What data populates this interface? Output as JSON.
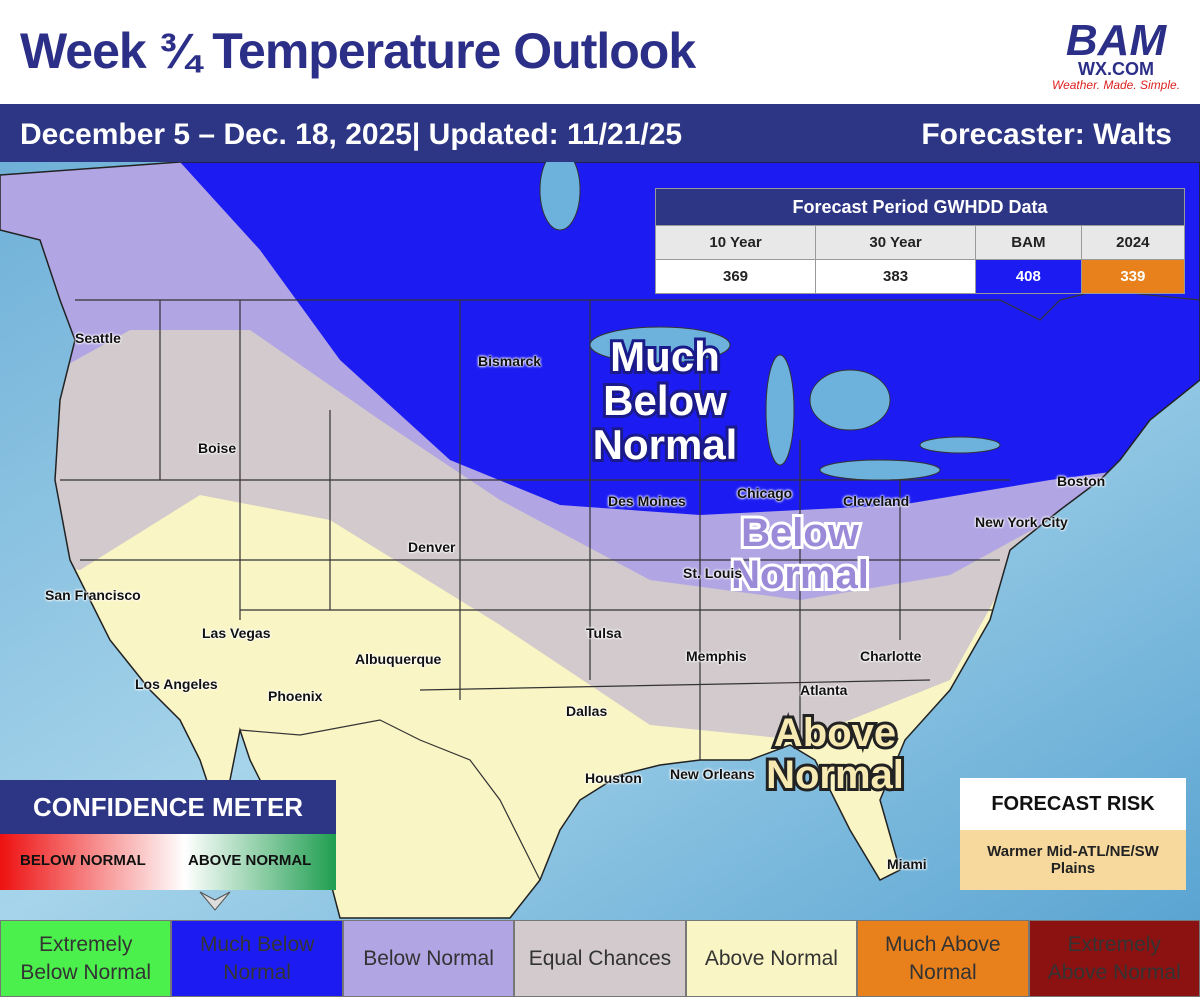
{
  "header": {
    "title": "Week ¾ Temperature Outlook",
    "logo": {
      "brand": "BAM",
      "site": "WX.COM",
      "tagline": "Weather. Made. Simple."
    }
  },
  "subheader": {
    "period": "December 5 – Dec. 18, 2025| Updated: 11/21/25",
    "forecaster": "Forecaster: Walts"
  },
  "table": {
    "title": "Forecast Period GWHDD Data",
    "headers": [
      "10 Year",
      "30 Year",
      "BAM",
      "2024"
    ],
    "values": [
      "369",
      "383",
      "408",
      "339"
    ]
  },
  "regions": [
    [
      "Much Below",
      "Normal"
    ],
    [
      "Below",
      "Normal"
    ],
    [
      "Above",
      "Normal"
    ]
  ],
  "cities": [
    "Seattle",
    "Boise",
    "San Francisco",
    "Las Vegas",
    "Los Angeles",
    "Phoenix",
    "Albuquerque",
    "Denver",
    "Bismarck",
    "Des Moines",
    "Chicago",
    "Cleveland",
    "Boston",
    "New York City",
    "St. Louis",
    "Tulsa",
    "Memphis",
    "Charlotte",
    "Atlanta",
    "Dallas",
    "Houston",
    "New Orleans",
    "Miami"
  ],
  "confidence_meter": {
    "title": "CONFIDENCE METER",
    "low": "BELOW NORMAL",
    "high": "ABOVE NORMAL"
  },
  "forecast_risk": {
    "title": "FORECAST RISK",
    "text": "Warmer Mid-ATL/NE/SW Plains"
  },
  "legend": [
    {
      "label": "Extremely Below Normal",
      "color": "#4cf04c"
    },
    {
      "label": "Much Below Normal",
      "color": "#1c1cf2"
    },
    {
      "label": "Below Normal",
      "color": "#b1a5e4"
    },
    {
      "label": "Equal Chances",
      "color": "#d2cacc"
    },
    {
      "label": "Above Normal",
      "color": "#faf5c4"
    },
    {
      "label": "Much Above Normal",
      "color": "#e8801c"
    },
    {
      "label": "Extremely Above Normal",
      "color": "#8c1212"
    }
  ]
}
